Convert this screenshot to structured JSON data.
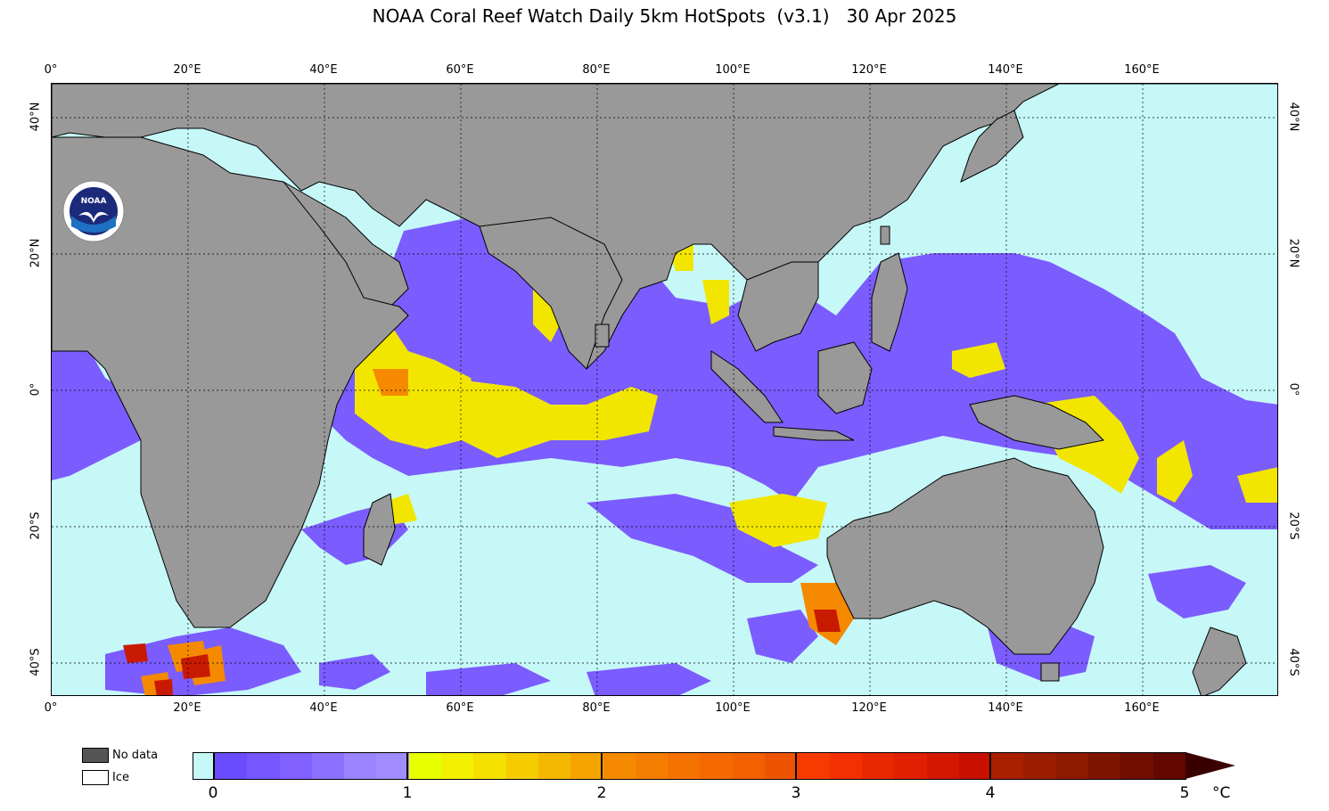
{
  "title": "NOAA Coral Reef Watch Daily 5km HotSpots  (v3.1)   30 Apr 2025",
  "logo_text": "NOAA",
  "axes": {
    "top_lon": [
      "0°",
      "20°E",
      "40°E",
      "60°E",
      "80°E",
      "100°E",
      "120°E",
      "140°E",
      "160°E"
    ],
    "bottom_lon": [
      "0°",
      "20°E",
      "40°E",
      "60°E",
      "80°E",
      "100°E",
      "120°E",
      "140°E",
      "160°E"
    ],
    "left_lat": [
      "40°N",
      "20°N",
      "0°",
      "20°S",
      "40°S"
    ],
    "right_lat": [
      "40°N",
      "20°N",
      "0°",
      "20°S",
      "40°S"
    ]
  },
  "legend": {
    "no_data_label": "No data",
    "ice_label": "Ice",
    "no_data_color": "#555555",
    "ice_color": "#ffffff"
  },
  "colorbar": {
    "ticks": [
      "0",
      "1",
      "2",
      "3",
      "4",
      "5"
    ],
    "unit": "°C",
    "zero_color": "#c6f8f8",
    "segments": [
      "#6a4cff",
      "#7656ff",
      "#8060ff",
      "#8c70ff",
      "#9a84ff",
      "#a08cff",
      "#e8ff00",
      "#f2f000",
      "#f5e000",
      "#f5cc00",
      "#f5b800",
      "#f5a400",
      "#f58a00",
      "#f57e00",
      "#f57200",
      "#f56a00",
      "#f26000",
      "#ee5400",
      "#f83a00",
      "#f23000",
      "#ea2800",
      "#e02000",
      "#d41800",
      "#c81000",
      "#a82000",
      "#9c1e00",
      "#8e1a00",
      "#7e1400",
      "#700e00",
      "#620800"
    ]
  },
  "colors": {
    "land": "#999999",
    "ocean_zero": "#c6f8f8",
    "hotspot_low": "#7b5cff",
    "hotspot_1": "#f2e600",
    "hotspot_2": "#f58a00",
    "hotspot_3": "#e62a00",
    "hotspot_4": "#8a1200"
  }
}
